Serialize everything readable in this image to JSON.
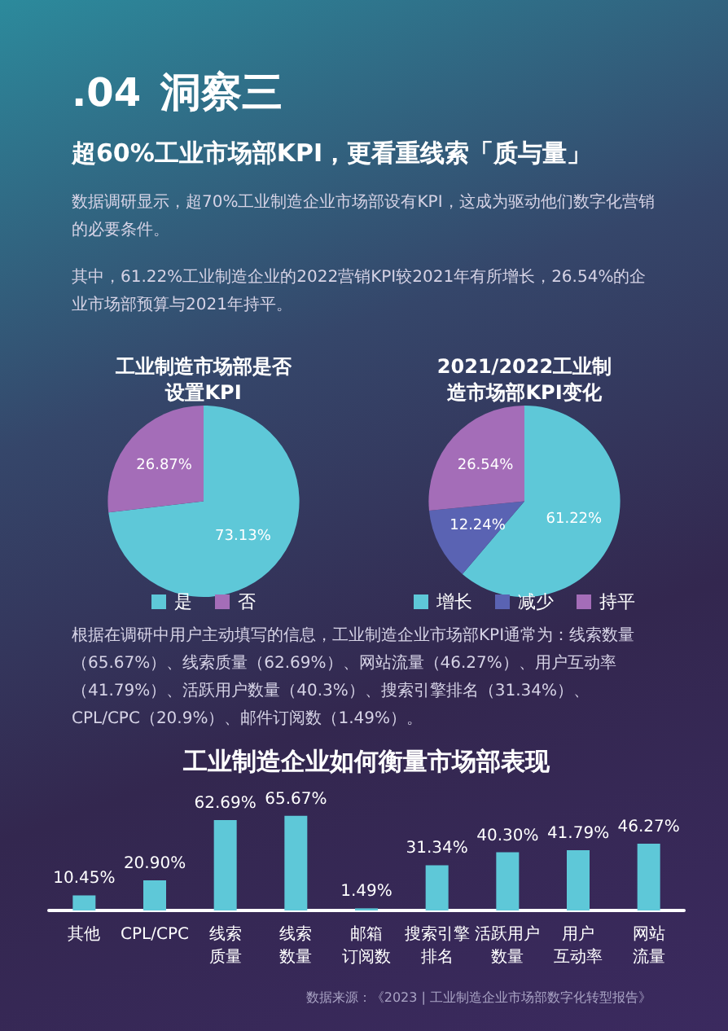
{
  "chart_data": [
    {
      "type": "other",
      "title": "洞察三",
      "subtitle": "超60%工业市场部KPI，更看重线索「质与量」",
      "annotations": [
        ".04",
        "数据调研显示，超70%工业制造企业市场部设有KPI，这成为驱动他们数字化营销的必要条件。",
        "其中，61.22%工业制造企业的2022营销KPI较2021年有所增长，26.54%的企业市场部预算与2021年持平。"
      ]
    },
    {
      "type": "pie",
      "title": "工业制造市场部是否设置KPI",
      "categories": [
        "是",
        "否"
      ],
      "values": [
        73.13,
        26.87
      ],
      "value_labels": [
        "73.13%",
        "26.87%"
      ],
      "colors": [
        "#5ec8d8",
        "#a46db8"
      ],
      "legend": "bottom"
    },
    {
      "type": "pie",
      "title": "2021/2022工业制造市场部KPI变化",
      "categories": [
        "增长",
        "减少",
        "持平"
      ],
      "values": [
        61.22,
        12.24,
        26.54
      ],
      "value_labels": [
        "61.22%",
        "12.24%",
        "26.54%"
      ],
      "colors": [
        "#5ec8d8",
        "#5a63b3",
        "#a46db8"
      ],
      "legend": "bottom"
    },
    {
      "type": "other",
      "annotations": [
        "根据在调研中用户主动填写的信息，工业制造企业市场部KPI通常为：线索数量（65.67%）、线索质量（62.69%）、网站流量（46.27%）、用户互动率（41.79%）、活跃用户数量（40.3%）、搜索引擎排名（31.34%）、CPL/CPC（20.9%）、邮件订阅数（1.49%）。"
      ]
    },
    {
      "type": "bar",
      "title": "工业制造企业如何衡量市场部表现",
      "categories": [
        "其他",
        "CPL/CPC",
        "线索质量",
        "线索数量",
        "邮箱订阅数",
        "搜索引擎排名",
        "活跃用户数量",
        "用户互动率",
        "网站流量"
      ],
      "values": [
        10.45,
        20.9,
        62.69,
        65.67,
        1.49,
        31.34,
        40.3,
        41.79,
        46.27
      ],
      "value_labels": [
        "10.45%",
        "20.90%",
        "62.69%",
        "65.67%",
        "1.49%",
        "31.34%",
        "40.30%",
        "41.79%",
        "46.27%"
      ],
      "color": "#5ec8d8",
      "tick_labels": "x",
      "grid": false,
      "annotations": [
        "数据来源：《2023 | 工业制造企业市场部数字化转型报告》"
      ]
    }
  ]
}
